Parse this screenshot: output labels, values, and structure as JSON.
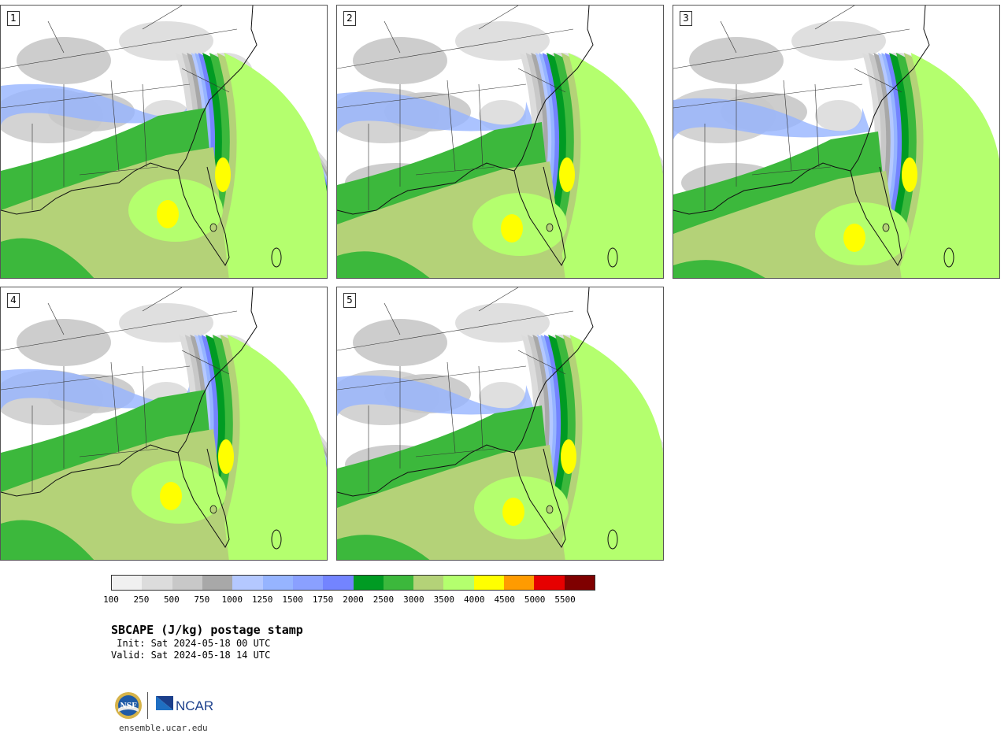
{
  "panels": [
    {
      "label": "1",
      "variant": 0
    },
    {
      "label": "2",
      "variant": 1
    },
    {
      "label": "3",
      "variant": 2
    },
    {
      "label": "4",
      "variant": 3
    },
    {
      "label": "5",
      "variant": 4
    }
  ],
  "colorbar": {
    "colors": [
      "#f0f0f0",
      "#dcdcdc",
      "#c8c8c8",
      "#a8a8a8",
      "#b4c8ff",
      "#96b4ff",
      "#8aa0ff",
      "#7384ff",
      "#009b23",
      "#3cb83c",
      "#b4d278",
      "#b4ff6e",
      "#ffff00",
      "#ff9b00",
      "#e60000",
      "#7f0000"
    ],
    "tick_labels": [
      "100",
      "250",
      "500",
      "750",
      "1000",
      "1250",
      "1500",
      "1750",
      "2000",
      "2500",
      "3000",
      "3500",
      "4000",
      "4500",
      "5000",
      "5500"
    ]
  },
  "title": "SBCAPE (J/kg) postage stamp",
  "init": " Init: Sat 2024-05-18 00 UTC",
  "valid": "Valid: Sat 2024-05-18 14 UTC",
  "logos": {
    "nsf": "NSF",
    "ncar": "NCAR"
  },
  "url": "ensemble.ucar.edu"
}
